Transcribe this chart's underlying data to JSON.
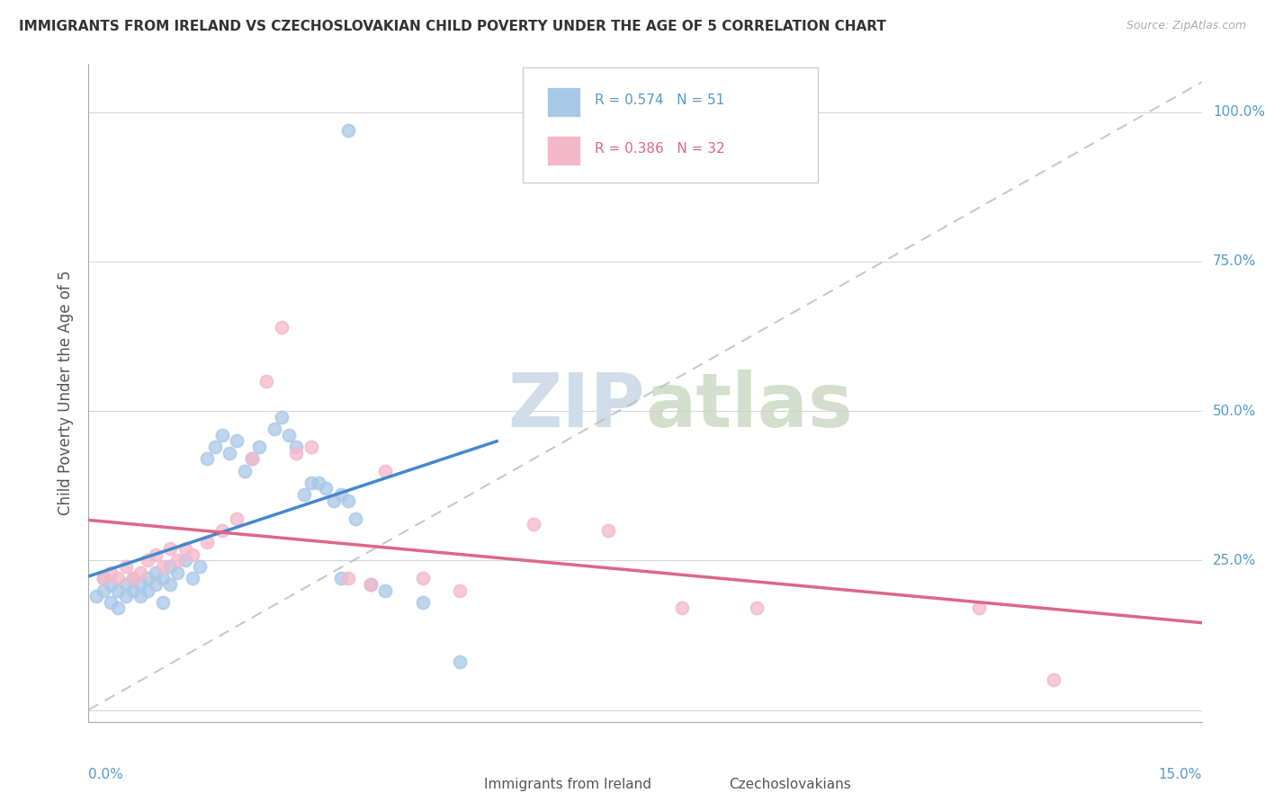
{
  "title": "IMMIGRANTS FROM IRELAND VS CZECHOSLOVAKIAN CHILD POVERTY UNDER THE AGE OF 5 CORRELATION CHART",
  "source": "Source: ZipAtlas.com",
  "ylabel": "Child Poverty Under the Age of 5",
  "xlim": [
    0.0,
    0.15
  ],
  "ylim": [
    -0.02,
    1.08
  ],
  "legend1_R": "0.574",
  "legend1_N": "51",
  "legend2_R": "0.386",
  "legend2_N": "32",
  "blue_color": "#a8c8e8",
  "pink_color": "#f4b8c8",
  "blue_line_color": "#4488cc",
  "pink_line_color": "#dd6688",
  "dash_line_color": "#bbbbbb",
  "watermark_color": "#d0dde8",
  "blue_x": [
    0.001,
    0.002,
    0.002,
    0.003,
    0.003,
    0.004,
    0.004,
    0.005,
    0.005,
    0.006,
    0.006,
    0.007,
    0.007,
    0.008,
    0.008,
    0.009,
    0.009,
    0.01,
    0.01,
    0.011,
    0.011,
    0.012,
    0.013,
    0.014,
    0.015,
    0.016,
    0.017,
    0.018,
    0.019,
    0.02,
    0.021,
    0.022,
    0.023,
    0.025,
    0.026,
    0.027,
    0.028,
    0.029,
    0.03,
    0.031,
    0.032,
    0.033,
    0.034,
    0.034,
    0.035,
    0.036,
    0.038,
    0.04,
    0.045,
    0.05,
    0.035
  ],
  "blue_y": [
    0.19,
    0.2,
    0.22,
    0.18,
    0.21,
    0.17,
    0.2,
    0.19,
    0.21,
    0.2,
    0.22,
    0.19,
    0.21,
    0.2,
    0.22,
    0.21,
    0.23,
    0.22,
    0.18,
    0.21,
    0.24,
    0.23,
    0.25,
    0.22,
    0.24,
    0.42,
    0.44,
    0.46,
    0.43,
    0.45,
    0.4,
    0.42,
    0.44,
    0.47,
    0.49,
    0.46,
    0.44,
    0.36,
    0.38,
    0.38,
    0.37,
    0.35,
    0.36,
    0.22,
    0.35,
    0.32,
    0.21,
    0.2,
    0.18,
    0.08,
    0.97
  ],
  "pink_x": [
    0.002,
    0.003,
    0.004,
    0.005,
    0.006,
    0.007,
    0.008,
    0.009,
    0.01,
    0.011,
    0.012,
    0.013,
    0.014,
    0.016,
    0.018,
    0.02,
    0.022,
    0.024,
    0.026,
    0.028,
    0.03,
    0.035,
    0.038,
    0.04,
    0.045,
    0.05,
    0.06,
    0.07,
    0.08,
    0.09,
    0.12,
    0.13
  ],
  "pink_y": [
    0.22,
    0.23,
    0.22,
    0.24,
    0.22,
    0.23,
    0.25,
    0.26,
    0.24,
    0.27,
    0.25,
    0.27,
    0.26,
    0.28,
    0.3,
    0.32,
    0.42,
    0.55,
    0.64,
    0.43,
    0.44,
    0.22,
    0.21,
    0.4,
    0.22,
    0.2,
    0.31,
    0.3,
    0.17,
    0.17,
    0.17,
    0.05
  ],
  "yticks": [
    0.0,
    0.25,
    0.5,
    0.75,
    1.0
  ],
  "ytick_labels": [
    "",
    "25.0%",
    "50.0%",
    "75.0%",
    "100.0%"
  ],
  "xtick_left_label": "0.0%",
  "xtick_right_label": "15.0%",
  "bottom_legend_label1": "Immigrants from Ireland",
  "bottom_legend_label2": "Czechoslovakians"
}
